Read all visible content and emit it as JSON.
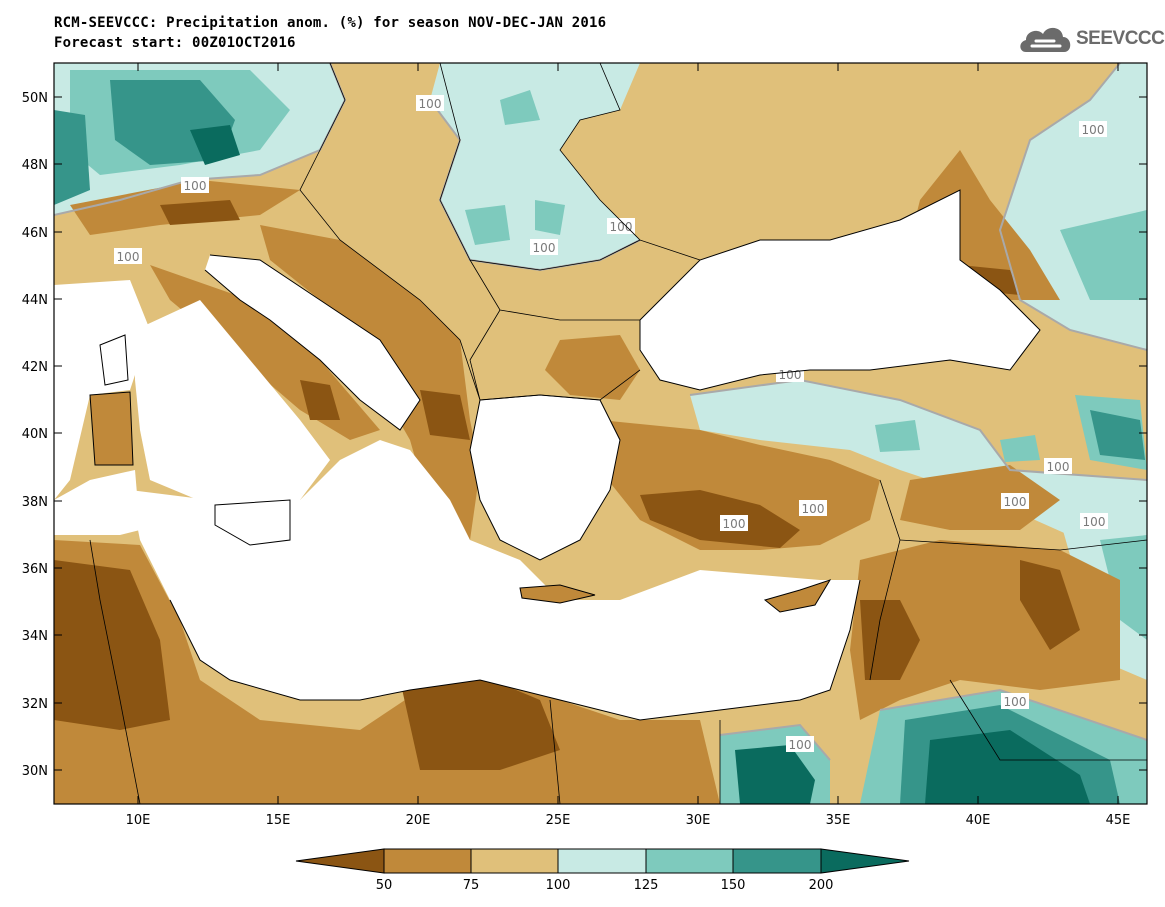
{
  "header": {
    "title_line1": "RCM-SEEVCCC: Precipitation anom. (%) for season NOV-DEC-JAN 2016",
    "title_line2": "Forecast start: 00Z01OCT2016",
    "logo_text": "SEEVCCC"
  },
  "map": {
    "lat_ticks": [
      "50N",
      "48N",
      "46N",
      "44N",
      "42N",
      "40N",
      "38N",
      "36N",
      "34N",
      "32N",
      "30N"
    ],
    "lon_ticks": [
      "10E",
      "15E",
      "20E",
      "25E",
      "30E",
      "35E",
      "40E",
      "45E"
    ],
    "contour_labels": [
      "100",
      "100",
      "100",
      "100",
      "100",
      "100",
      "100",
      "100",
      "100",
      "100",
      "100",
      "100",
      "100",
      "100"
    ],
    "colors": {
      "below_50": "#8b5513",
      "50_75": "#c0893a",
      "75_100": "#e0c07a",
      "100_125": "#c8eae4",
      "125_150": "#7ecabd",
      "150_200": "#36958a",
      "above_200": "#0a6b5e",
      "sea": "#ffffff"
    }
  },
  "colorbar": {
    "labels": [
      "50",
      "75",
      "100",
      "125",
      "150",
      "200"
    ],
    "colors": [
      "#8b5513",
      "#c0893a",
      "#e0c07a",
      "#c8eae4",
      "#7ecabd",
      "#36958a",
      "#0a6b5e"
    ]
  }
}
